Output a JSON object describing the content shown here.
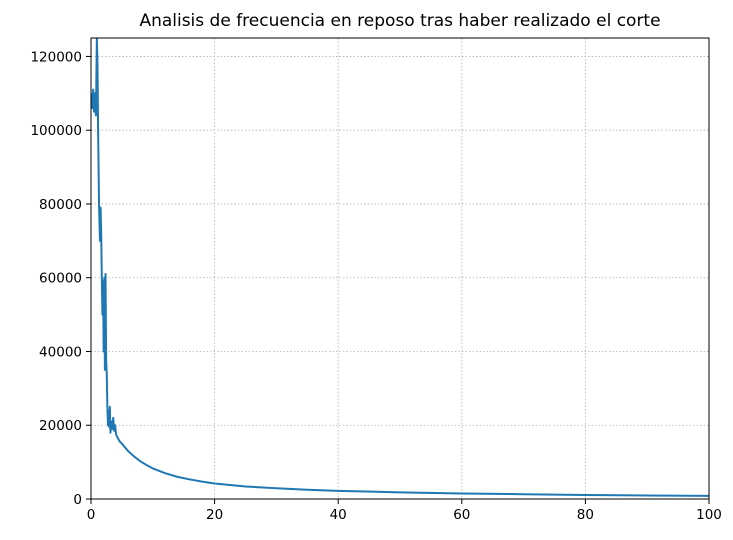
{
  "chart_data": {
    "type": "line",
    "title": "Analisis de frecuencia en reposo tras haber realizado el corte",
    "xlabel": "",
    "ylabel": "",
    "xlim": [
      0,
      100
    ],
    "ylim": [
      0,
      125000
    ],
    "x_ticks": [
      0,
      20,
      40,
      60,
      80,
      100
    ],
    "x_tick_labels": [
      "0",
      "20",
      "40",
      "60",
      "80",
      "100"
    ],
    "y_ticks": [
      0,
      20000,
      40000,
      60000,
      80000,
      100000,
      120000
    ],
    "y_tick_labels": [
      "0",
      "20000",
      "40000",
      "60000",
      "80000",
      "100000",
      "120000"
    ],
    "grid": true,
    "legend": "none",
    "line_color": "#1f77b4",
    "series": [
      {
        "x": [
          0,
          0.2,
          0.35,
          0.5,
          0.65,
          0.8,
          0.95,
          1.05,
          1.15,
          1.3,
          1.45,
          1.55,
          1.65,
          1.75,
          1.85,
          1.95,
          2.05,
          2.15,
          2.25,
          2.35,
          2.45,
          2.55,
          2.65,
          2.75,
          2.85,
          2.95,
          3.05,
          3.15,
          3.3,
          3.45,
          3.6,
          3.75,
          3.9,
          4.05,
          4.2,
          4.35,
          4.5,
          4.7,
          5,
          5.5,
          6,
          7,
          8,
          9,
          10,
          12,
          14,
          16,
          18,
          20,
          25,
          30,
          35,
          40,
          50,
          60,
          70,
          80,
          90,
          100
        ],
        "y": [
          110000,
          106000,
          111000,
          105000,
          110000,
          104000,
          125000,
          118000,
          100000,
          80000,
          70000,
          79000,
          72000,
          60000,
          50000,
          59000,
          40000,
          60000,
          35000,
          61000,
          38000,
          34000,
          25000,
          20000,
          24000,
          19500,
          25000,
          18000,
          21000,
          19000,
          22000,
          18500,
          20000,
          17500,
          17000,
          16500,
          16000,
          15500,
          15000,
          14000,
          13000,
          11500,
          10200,
          9200,
          8300,
          7000,
          6000,
          5300,
          4700,
          4200,
          3400,
          2900,
          2500,
          2200,
          1800,
          1500,
          1300,
          1100,
          950,
          850
        ]
      }
    ]
  }
}
